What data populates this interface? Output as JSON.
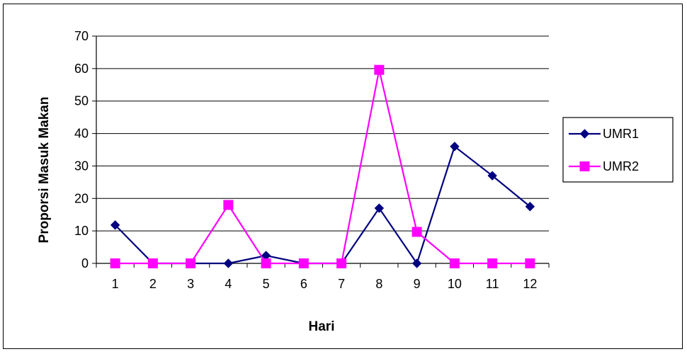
{
  "chart_data": {
    "type": "line",
    "title": "",
    "xlabel": "Hari",
    "ylabel": "Proporsi  Masuk Makan",
    "categories": [
      "1",
      "2",
      "3",
      "4",
      "5",
      "6",
      "7",
      "8",
      "9",
      "10",
      "11",
      "12"
    ],
    "ylim": [
      0,
      70
    ],
    "yticks": [
      "0",
      "10",
      "20",
      "30",
      "40",
      "50",
      "60",
      "70"
    ],
    "grid": true,
    "legend_position": "right",
    "series": [
      {
        "name": "UMR1",
        "color": "#000080",
        "marker": "diamond",
        "values": [
          11.8,
          0,
          0,
          0,
          2.4,
          0,
          0,
          17,
          0,
          36,
          27,
          17.5
        ]
      },
      {
        "name": "UMR2",
        "color": "#FF00FF",
        "marker": "square",
        "values": [
          0,
          0,
          0,
          18,
          0,
          0,
          0,
          59.6,
          9.7,
          0,
          0,
          0
        ]
      }
    ]
  }
}
